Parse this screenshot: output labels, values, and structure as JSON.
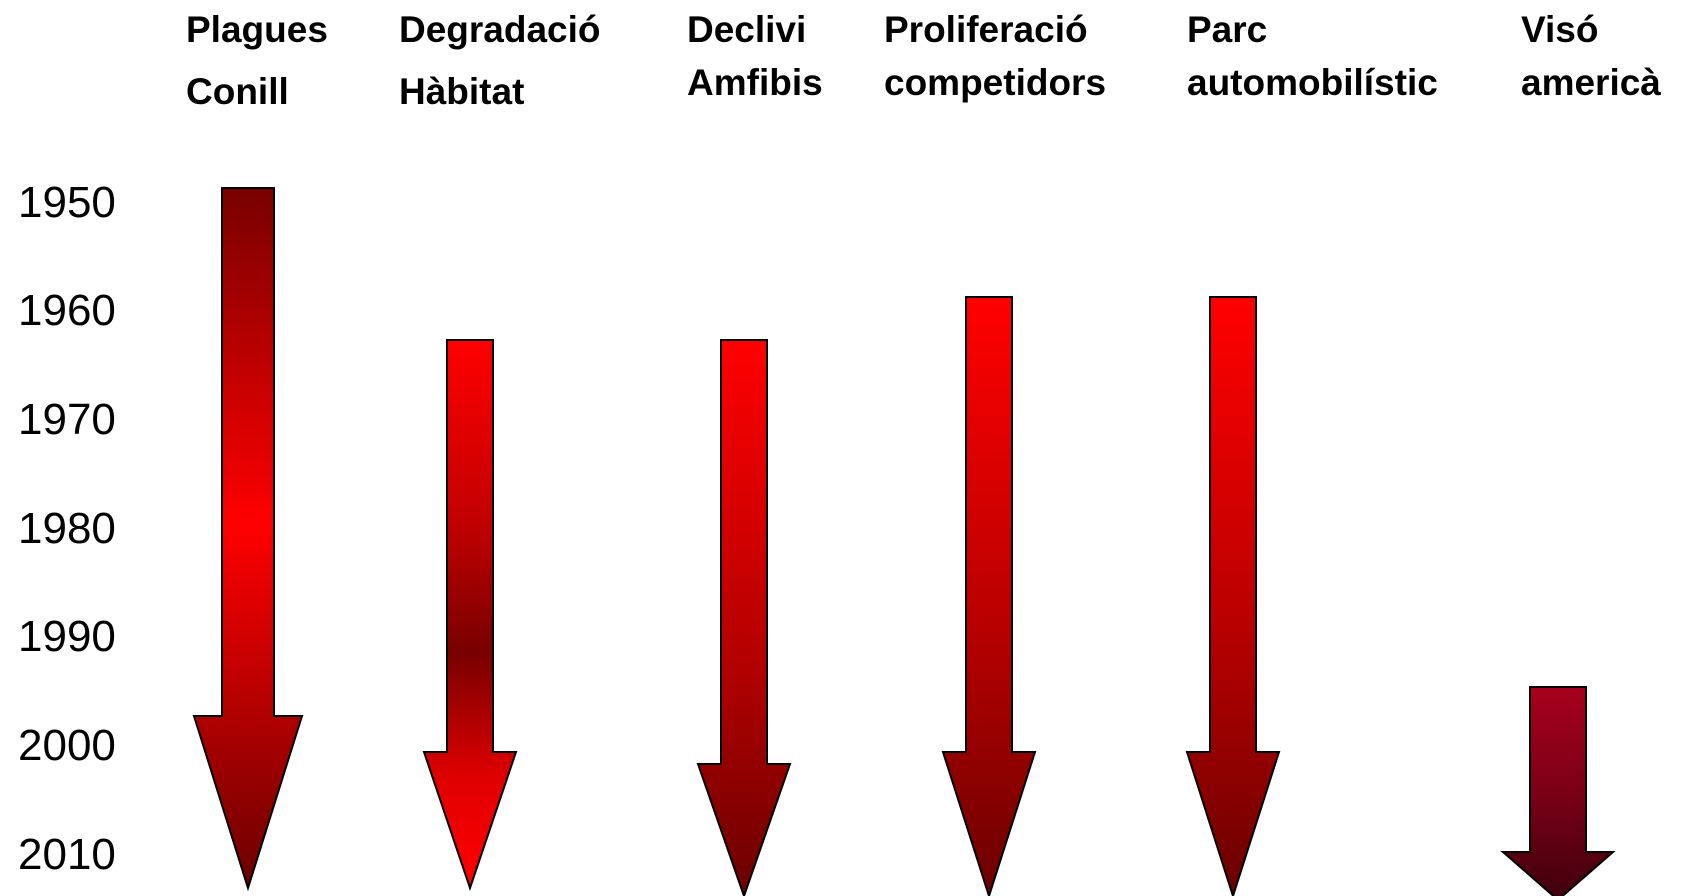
{
  "year_axis": [
    "1950",
    "1960",
    "1970",
    "1980",
    "1990",
    "2000",
    "2010"
  ],
  "columns": [
    {
      "label_lines": [
        "Plagues",
        "Conill"
      ],
      "start_year": 1950,
      "gradient": [
        [
          "0",
          "#780000"
        ],
        [
          "0.48",
          "#ff0000"
        ],
        [
          "1",
          "#6a0000"
        ]
      ]
    },
    {
      "label_lines": [
        "Degradació",
        "Hàbitat"
      ],
      "start_year": 1964,
      "gradient": [
        [
          "0",
          "#ff0000"
        ],
        [
          "0.34",
          "#c00000"
        ],
        [
          "0.57",
          "#780000"
        ],
        [
          "0.8",
          "#e00000"
        ],
        [
          "1",
          "#ff0000"
        ]
      ]
    },
    {
      "label_lines": [
        "Declivi",
        "Amfibis"
      ],
      "start_year": 1964,
      "gradient": [
        [
          "0",
          "#ff0000"
        ],
        [
          "0.6",
          "#b00000"
        ],
        [
          "1",
          "#6a0000"
        ]
      ]
    },
    {
      "label_lines": [
        "Proliferació",
        "competidors"
      ],
      "start_year": 1960,
      "gradient": [
        [
          "0",
          "#ff0000"
        ],
        [
          "0.55",
          "#b80000"
        ],
        [
          "1",
          "#6a0000"
        ]
      ]
    },
    {
      "label_lines": [
        "Parc",
        "automobilístic"
      ],
      "start_year": 1960,
      "gradient": [
        [
          "0",
          "#ff0000"
        ],
        [
          "0.55",
          "#b80000"
        ],
        [
          "1",
          "#6a0000"
        ]
      ]
    },
    {
      "label_lines": [
        "Visó",
        "americà"
      ],
      "start_year": 1996,
      "gradient": [
        [
          "0",
          "#a8001c"
        ],
        [
          "0.5",
          "#7a0016"
        ],
        [
          "1",
          "#3e000c"
        ]
      ]
    }
  ]
}
